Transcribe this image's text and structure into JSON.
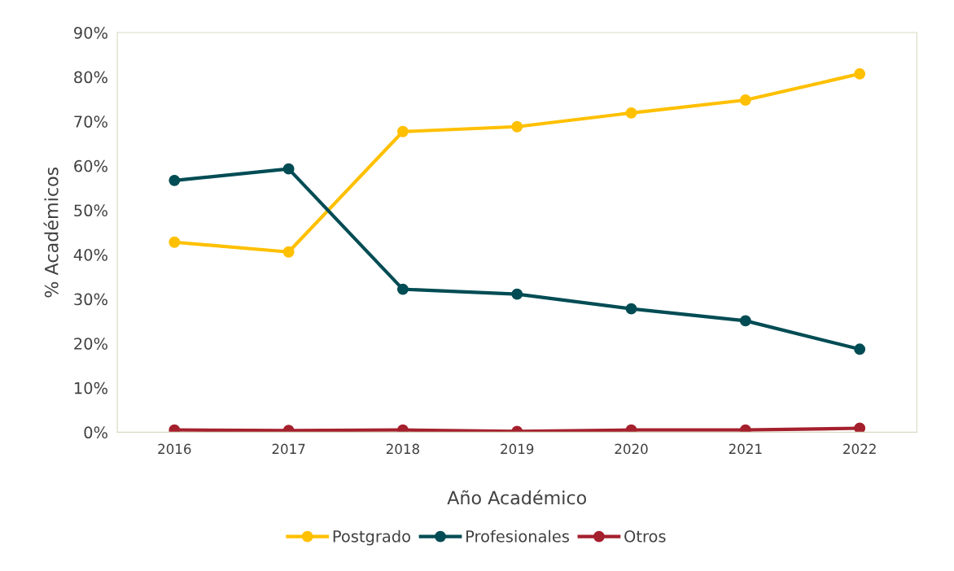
{
  "chart_data": {
    "type": "line",
    "xlabel": "Año Académico",
    "ylabel": "% Académicos",
    "categories": [
      "2016",
      "2017",
      "2018",
      "2019",
      "2020",
      "2021",
      "2022"
    ],
    "series": [
      {
        "name": "Postgrado",
        "color": "#ffc000",
        "values": [
          42.8,
          40.6,
          67.7,
          68.8,
          71.9,
          74.8,
          80.7
        ]
      },
      {
        "name": "Profesionales",
        "color": "#004c54",
        "values": [
          56.7,
          59.3,
          32.2,
          31.1,
          27.8,
          25.1,
          18.7
        ]
      },
      {
        "name": "Otros",
        "color": "#a5202d",
        "values": [
          0.5,
          0.4,
          0.5,
          0.2,
          0.5,
          0.5,
          0.9
        ]
      }
    ],
    "ylim": [
      0,
      90
    ],
    "yticks": [
      {
        "value": 0,
        "label": "0%"
      },
      {
        "value": 10,
        "label": "10%"
      },
      {
        "value": 20,
        "label": "20%"
      },
      {
        "value": 30,
        "label": "30%"
      },
      {
        "value": 40,
        "label": "40%"
      },
      {
        "value": 50,
        "label": "50%"
      },
      {
        "value": 60,
        "label": "60%"
      },
      {
        "value": 70,
        "label": "70%"
      },
      {
        "value": 80,
        "label": "80%"
      },
      {
        "value": 90,
        "label": "90%"
      }
    ],
    "grid": false,
    "legend": "bottom",
    "marker": "circle",
    "line_style": "solid"
  }
}
